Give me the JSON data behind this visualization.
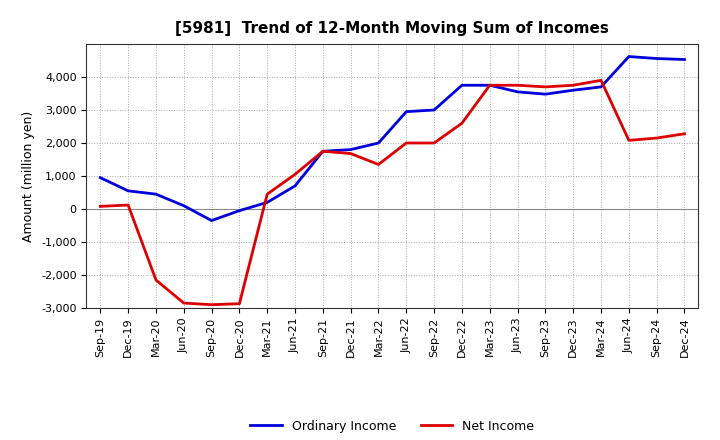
{
  "title": "[5981]  Trend of 12-Month Moving Sum of Incomes",
  "ylabel": "Amount (million yen)",
  "background_color": "#ffffff",
  "plot_bg_color": "#ffffff",
  "grid_color": "#aaaaaa",
  "ylim": [
    -3000,
    5000
  ],
  "yticks": [
    -3000,
    -2000,
    -1000,
    0,
    1000,
    2000,
    3000,
    4000
  ],
  "x_labels": [
    "Sep-19",
    "Dec-19",
    "Mar-20",
    "Jun-20",
    "Sep-20",
    "Dec-20",
    "Mar-21",
    "Jun-21",
    "Sep-21",
    "Dec-21",
    "Mar-22",
    "Jun-22",
    "Sep-22",
    "Dec-22",
    "Mar-23",
    "Jun-23",
    "Sep-23",
    "Dec-23",
    "Mar-24",
    "Jun-24",
    "Sep-24",
    "Dec-24"
  ],
  "ordinary_income": [
    950,
    550,
    450,
    100,
    -350,
    -50,
    200,
    700,
    1750,
    1800,
    2000,
    2950,
    3000,
    3750,
    3750,
    3550,
    3480,
    3600,
    3700,
    4620,
    4560,
    4530
  ],
  "net_income": [
    80,
    120,
    -2150,
    -2850,
    -2900,
    -2870,
    450,
    1050,
    1750,
    1680,
    1350,
    2000,
    2000,
    2600,
    3750,
    3750,
    3700,
    3750,
    3900,
    2080,
    2150,
    2280
  ],
  "ordinary_color": "#0000dd",
  "net_color": "#dd0000",
  "line_width": 2.0,
  "title_fontsize": 11,
  "tick_fontsize": 8,
  "ylabel_fontsize": 9,
  "legend_fontsize": 9
}
